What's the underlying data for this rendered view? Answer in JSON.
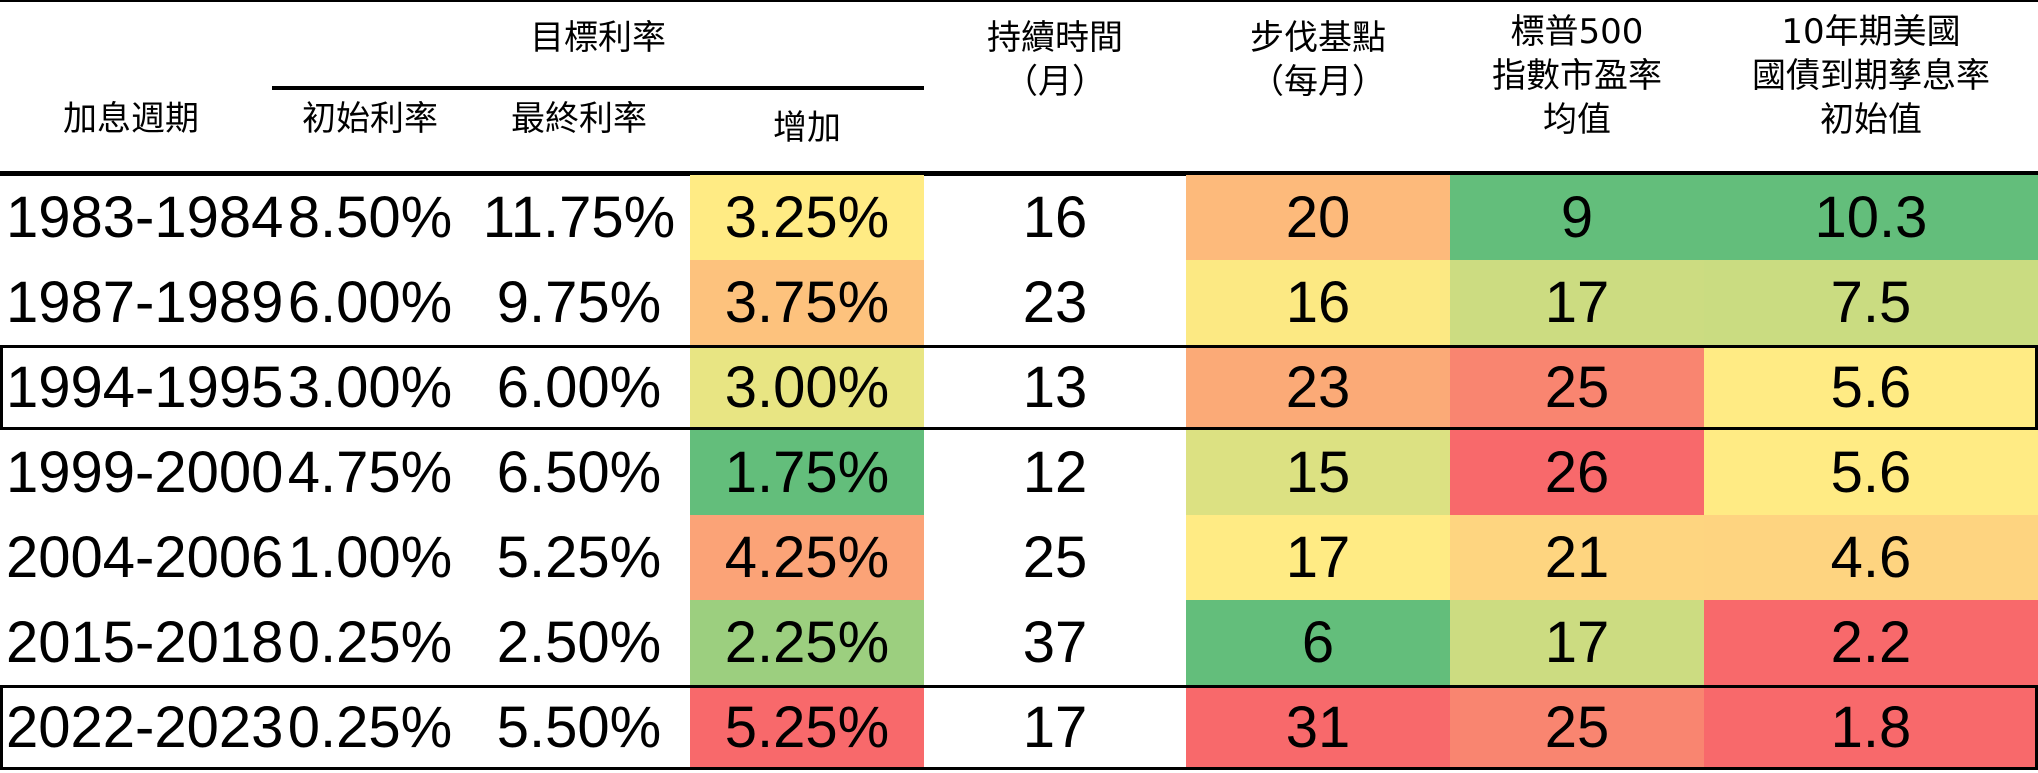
{
  "headers": {
    "period": "加息週期",
    "target_rate": "目標利率",
    "initial_rate": "初始利率",
    "final_rate": "最終利率",
    "increase": "增加",
    "duration": "持續時間\n（月）",
    "pace": "步伐基點\n（每月）",
    "sp500_pe": "標普500\n指數市盈率\n均值",
    "treasury": "10年期美國\n國債到期孳息率\n初始值"
  },
  "chart_data": {
    "type": "table",
    "columns": [
      "加息週期",
      "初始利率",
      "最終利率",
      "增加",
      "持續時間（月）",
      "步伐基點（每月）",
      "標普500指數市盈率均值",
      "10年期美國國債到期孳息率初始值"
    ],
    "rows": [
      {
        "period": "1983-1984",
        "initial": "8.50%",
        "final": "11.75%",
        "increase": "3.25%",
        "duration": "16",
        "pace": "20",
        "pe": "9",
        "yield": "10.3"
      },
      {
        "period": "1987-1989",
        "initial": "6.00%",
        "final": "9.75%",
        "increase": "3.75%",
        "duration": "23",
        "pace": "16",
        "pe": "17",
        "yield": "7.5"
      },
      {
        "period": "1994-1995",
        "initial": "3.00%",
        "final": "6.00%",
        "increase": "3.00%",
        "duration": "13",
        "pace": "23",
        "pe": "25",
        "yield": "5.6"
      },
      {
        "period": "1999-2000",
        "initial": "4.75%",
        "final": "6.50%",
        "increase": "1.75%",
        "duration": "12",
        "pace": "15",
        "pe": "26",
        "yield": "5.6"
      },
      {
        "period": "2004-2006",
        "initial": "1.00%",
        "final": "5.25%",
        "increase": "4.25%",
        "duration": "25",
        "pace": "17",
        "pe": "21",
        "yield": "4.6"
      },
      {
        "period": "2015-2018",
        "initial": "0.25%",
        "final": "2.50%",
        "increase": "2.25%",
        "duration": "37",
        "pace": "6",
        "pe": "17",
        "yield": "2.2"
      },
      {
        "period": "2022-2023",
        "initial": "0.25%",
        "final": "5.50%",
        "increase": "5.25%",
        "duration": "17",
        "pace": "31",
        "pe": "25",
        "yield": "1.8"
      }
    ],
    "highlighted_rows": [
      "1994-1995",
      "2022-2023"
    ],
    "heat_colors": {
      "increase": [
        "#FFEB84",
        "#FDC27D",
        "#E8E583",
        "#63BE7B",
        "#FBA377",
        "#9CCF7F",
        "#F8696B"
      ],
      "pace": [
        "#FDBA7B",
        "#FCE983",
        "#FBAA77",
        "#DCE182",
        "#FFEB84",
        "#63BE7B",
        "#F8696B"
      ],
      "pe": [
        "#63BE7B",
        "#CCDC81",
        "#F98570",
        "#F8696B",
        "#FED580",
        "#CCDC81",
        "#F98570"
      ],
      "yield": [
        "#63BE7B",
        "#CADC81",
        "#FFEB84",
        "#FFEB84",
        "#FED480",
        "#F8696B",
        "#F8696B"
      ]
    }
  }
}
